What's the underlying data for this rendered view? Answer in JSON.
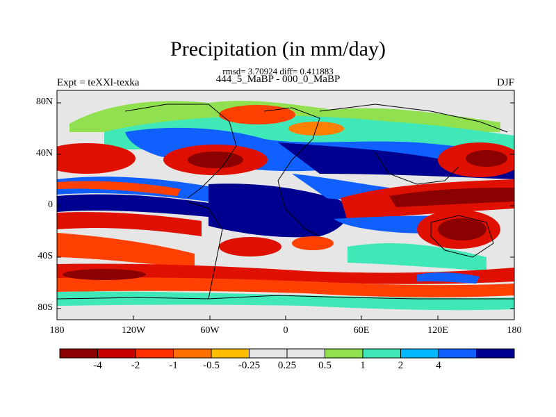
{
  "title": "Precipitation (in mm/day)",
  "stats_line": "rmsd= 3.70924 diff= 0.411883",
  "subtitle": "444_5_MaBP - 000_0_MaBP",
  "experiment_label": "Expt = teXXl-texka",
  "season": "DJF",
  "lat_labels": [
    "80N",
    "40N",
    "0",
    "40S",
    "80S"
  ],
  "lon_labels": [
    "180",
    "120W",
    "60W",
    "0",
    "60E",
    "120E",
    "180"
  ],
  "colorbar": {
    "colors": [
      "#8b0000",
      "#c80000",
      "#ff3000",
      "#ff7000",
      "#ffbf00",
      "#e6e6e6",
      "#e6e6e6",
      "#90e050",
      "#40e8b8",
      "#00b8ff",
      "#1060ff",
      "#000090"
    ],
    "labels": [
      "-4",
      "-2",
      "-1",
      "-0.5",
      "-0.25",
      "0.25",
      "0.5",
      "1",
      "2",
      "4"
    ]
  },
  "map_colors": {
    "background": "#e6e6e6",
    "dark_red": "#8b0000",
    "red": "#e01000",
    "orange_red": "#ff4000",
    "orange": "#ff8000",
    "yellow": "#ffc800",
    "green": "#90e050",
    "cyan": "#40e8b8",
    "light_blue": "#00b8ff",
    "blue": "#1060ff",
    "navy": "#000090"
  }
}
